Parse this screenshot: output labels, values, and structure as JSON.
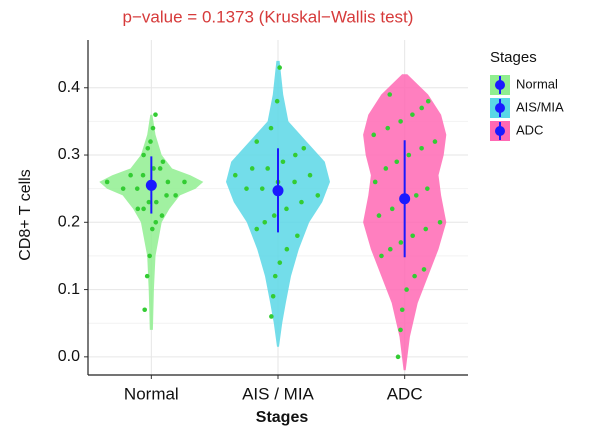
{
  "chart_data": {
    "type": "violin",
    "title": "p−value = 0.1373 (Kruskal−Wallis test)",
    "x_label": "Stages",
    "y_label": "CD8+ T cells",
    "legend_title": "Stages",
    "legend_position": "right",
    "categories": [
      "Normal",
      "AIS / MIA",
      "ADC"
    ],
    "ylim": [
      -0.027,
      0.471
    ],
    "yticks": [
      {
        "value": 0,
        "label": "0.0"
      },
      0.1,
      0.2,
      0.3,
      0.4
    ],
    "grid": true,
    "point_color": "#33cc33",
    "mean_color": "#1a1aff",
    "series": [
      {
        "name": "Normal",
        "color": "#90ee90",
        "violin": {
          "y": [
            0.04,
            0.1,
            0.15,
            0.2,
            0.22,
            0.24,
            0.25,
            0.26,
            0.27,
            0.28,
            0.3,
            0.33,
            0.36
          ],
          "density": [
            0.03,
            0.05,
            0.08,
            0.2,
            0.35,
            0.55,
            0.85,
            1.0,
            0.75,
            0.4,
            0.2,
            0.08,
            0.02
          ]
        },
        "points": [
          0.07,
          0.12,
          0.15,
          0.19,
          0.2,
          0.21,
          0.22,
          0.22,
          0.23,
          0.23,
          0.24,
          0.24,
          0.25,
          0.25,
          0.25,
          0.26,
          0.26,
          0.26,
          0.27,
          0.27,
          0.28,
          0.28,
          0.29,
          0.3,
          0.31,
          0.32,
          0.34,
          0.36
        ],
        "mean": 0.255,
        "lower": 0.213,
        "upper": 0.298
      },
      {
        "name": "AIS/MIA",
        "color": "#5ad7e6",
        "violin": {
          "y": [
            0.015,
            0.05,
            0.08,
            0.12,
            0.16,
            0.2,
            0.23,
            0.26,
            0.29,
            0.32,
            0.35,
            0.39,
            0.44
          ],
          "density": [
            0.02,
            0.08,
            0.15,
            0.25,
            0.4,
            0.6,
            0.85,
            1.0,
            0.9,
            0.55,
            0.2,
            0.1,
            0.03
          ]
        },
        "points": [
          0.06,
          0.09,
          0.12,
          0.14,
          0.16,
          0.18,
          0.19,
          0.2,
          0.21,
          0.22,
          0.23,
          0.24,
          0.25,
          0.25,
          0.26,
          0.26,
          0.27,
          0.27,
          0.28,
          0.28,
          0.29,
          0.3,
          0.31,
          0.32,
          0.34,
          0.38,
          0.43
        ],
        "mean": 0.247,
        "lower": 0.185,
        "upper": 0.31
      },
      {
        "name": "ADC",
        "color": "#ff69b4",
        "violin": {
          "y": [
            -0.02,
            0.03,
            0.08,
            0.12,
            0.16,
            0.2,
            0.24,
            0.27,
            0.3,
            0.33,
            0.36,
            0.39,
            0.42
          ],
          "density": [
            0.02,
            0.1,
            0.25,
            0.45,
            0.65,
            0.8,
            0.7,
            0.65,
            0.75,
            0.8,
            0.7,
            0.45,
            0.05
          ]
        },
        "points": [
          0.0,
          0.04,
          0.07,
          0.1,
          0.12,
          0.13,
          0.15,
          0.16,
          0.17,
          0.18,
          0.19,
          0.2,
          0.21,
          0.22,
          0.23,
          0.24,
          0.25,
          0.26,
          0.28,
          0.29,
          0.3,
          0.31,
          0.32,
          0.33,
          0.34,
          0.35,
          0.36,
          0.37,
          0.38,
          0.39
        ],
        "mean": 0.235,
        "lower": 0.148,
        "upper": 0.322
      }
    ]
  }
}
